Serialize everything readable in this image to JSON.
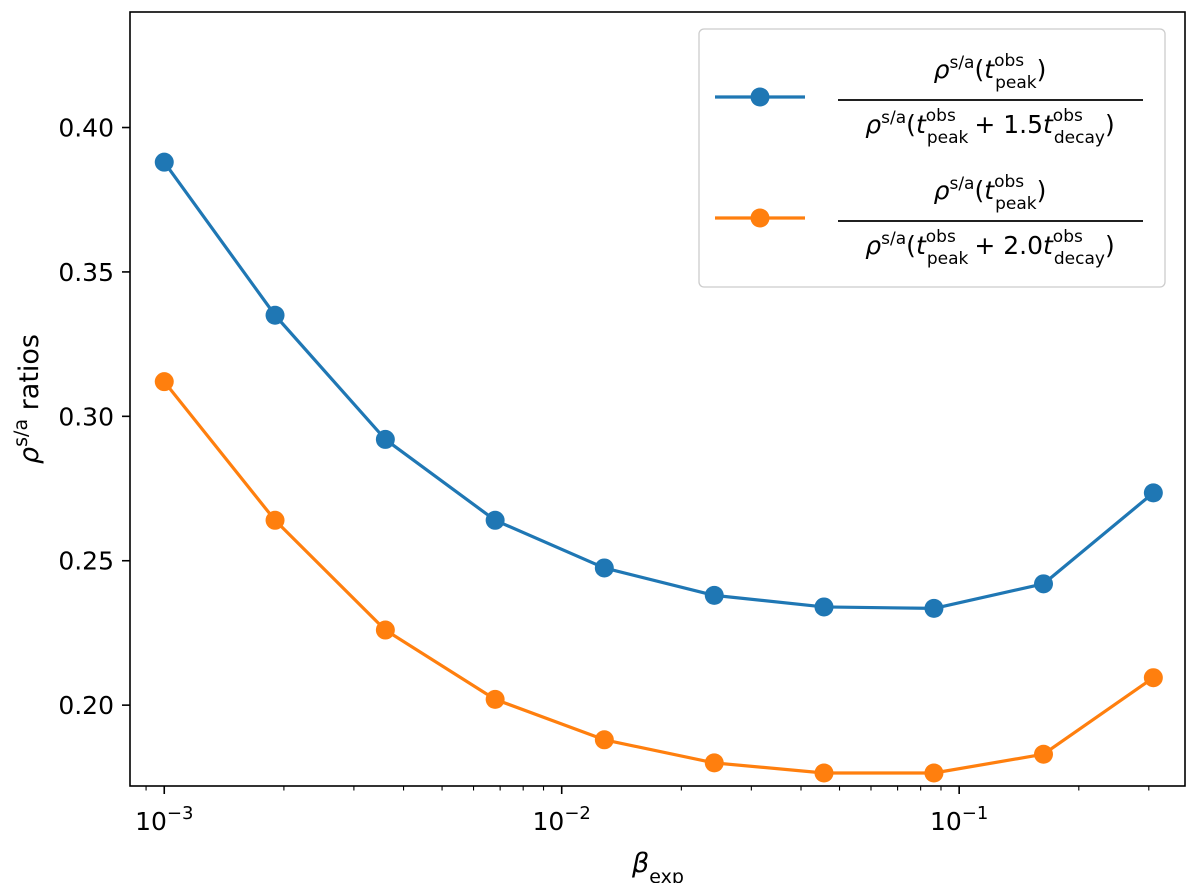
{
  "chart_data": {
    "type": "line",
    "title": "",
    "xscale": "log",
    "xlim": [
      0.00082,
      0.37
    ],
    "ylim": [
      0.172,
      0.44
    ],
    "xlabel": {
      "main": "β",
      "sub": "exp"
    },
    "ylabel": {
      "main": "ρ",
      "sup": "s/a",
      "rest": " ratios"
    },
    "grid": false,
    "legend_position": "top-right",
    "x": [
      0.001,
      0.0019,
      0.0036,
      0.0068,
      0.0128,
      0.0242,
      0.0457,
      0.0864,
      0.163,
      0.308
    ],
    "x_ticks": [
      {
        "value": 0.001,
        "base": "10",
        "exp": "−3"
      },
      {
        "value": 0.01,
        "base": "10",
        "exp": "−2"
      },
      {
        "value": 0.1,
        "base": "10",
        "exp": "−1"
      }
    ],
    "y_ticks": [
      {
        "value": 0.2,
        "label": "0.20"
      },
      {
        "value": 0.25,
        "label": "0.25"
      },
      {
        "value": 0.3,
        "label": "0.30"
      },
      {
        "value": 0.35,
        "label": "0.35"
      },
      {
        "value": 0.4,
        "label": "0.40"
      }
    ],
    "series": [
      {
        "name": "ρ^s/a(t_peak^obs) / ρ^s/a(t_peak^obs + 1.5 t_decay^obs)",
        "color": "#1f77b4",
        "values": [
          0.388,
          0.335,
          0.292,
          0.264,
          0.2475,
          0.238,
          0.234,
          0.2335,
          0.242,
          0.2735
        ],
        "legend": {
          "num": {
            "rho": "ρ",
            "sup": "s/a",
            "t": "t",
            "tsup": "obs",
            "tsub": "peak"
          },
          "den": {
            "rho": "ρ",
            "sup": "s/a",
            "t": "t",
            "tsup": "obs",
            "tsub": "peak",
            "plus": "+ 1.5",
            "t2": "t",
            "t2sup": "obs",
            "t2sub": "decay"
          }
        }
      },
      {
        "name": "ρ^s/a(t_peak^obs) / ρ^s/a(t_peak^obs + 2.0 t_decay^obs)",
        "color": "#ff7f0e",
        "values": [
          0.312,
          0.264,
          0.226,
          0.202,
          0.188,
          0.18,
          0.1765,
          0.1765,
          0.183,
          0.2095
        ],
        "legend": {
          "num": {
            "rho": "ρ",
            "sup": "s/a",
            "t": "t",
            "tsup": "obs",
            "tsub": "peak"
          },
          "den": {
            "rho": "ρ",
            "sup": "s/a",
            "t": "t",
            "tsup": "obs",
            "tsub": "peak",
            "plus": "+ 2.0",
            "t2": "t",
            "t2sup": "obs",
            "t2sub": "decay"
          }
        }
      }
    ]
  }
}
